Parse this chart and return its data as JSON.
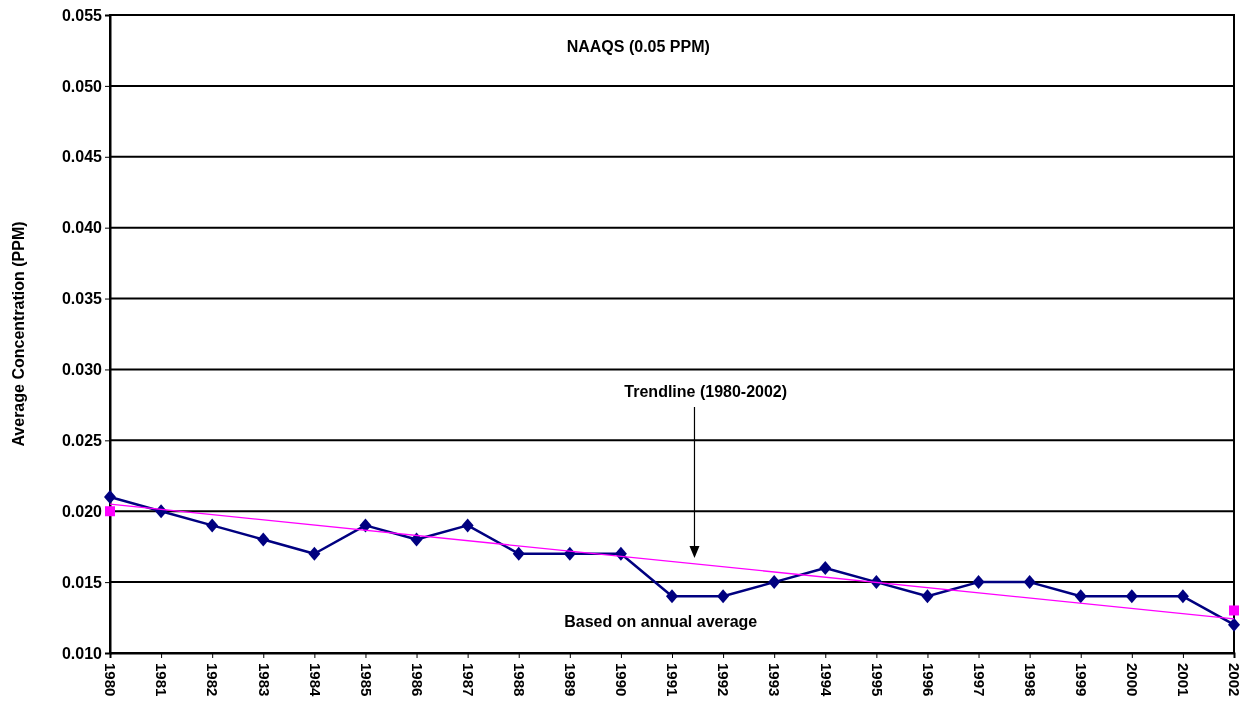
{
  "chart_data": {
    "type": "line",
    "ylabel": "Average Concentration (PPM)",
    "x": [
      1980,
      1981,
      1982,
      1983,
      1984,
      1985,
      1986,
      1987,
      1988,
      1989,
      1990,
      1991,
      1992,
      1993,
      1994,
      1995,
      1996,
      1997,
      1998,
      1999,
      2000,
      2001,
      2002
    ],
    "xlim": [
      1980,
      2002
    ],
    "xticks": [
      1980,
      1981,
      1982,
      1983,
      1984,
      1985,
      1986,
      1987,
      1988,
      1989,
      1990,
      1991,
      1992,
      1993,
      1994,
      1995,
      1996,
      1997,
      1998,
      1999,
      2000,
      2001,
      2002
    ],
    "series": [
      {
        "color": "#000080",
        "marker": "diamond",
        "values": [
          0.021,
          0.02,
          0.019,
          0.018,
          0.017,
          0.019,
          0.018,
          0.019,
          0.017,
          0.017,
          0.017,
          0.014,
          0.014,
          0.015,
          0.016,
          0.015,
          0.014,
          0.015,
          0.015,
          0.014,
          0.014,
          0.014,
          0.012
        ]
      },
      {
        "type": "line",
        "color": "#ff00ff",
        "marker": "none",
        "values": [
          0.0205,
          null,
          null,
          null,
          null,
          null,
          null,
          null,
          null,
          null,
          null,
          null,
          null,
          null,
          null,
          null,
          null,
          null,
          null,
          null,
          null,
          null,
          0.0124
        ]
      },
      {
        "type": "scatter",
        "color": "#ff00ff",
        "marker": "square",
        "values": [
          0.02,
          null,
          null,
          null,
          null,
          null,
          null,
          null,
          null,
          null,
          null,
          null,
          null,
          null,
          null,
          null,
          null,
          null,
          null,
          null,
          null,
          null,
          0.013
        ]
      }
    ],
    "ylim": [
      0.01,
      0.055
    ],
    "yticks": [
      {
        "value": 0.01,
        "label": "0.010"
      },
      {
        "value": 0.015,
        "label": "0.015"
      },
      {
        "value": 0.02,
        "label": "0.020"
      },
      {
        "value": 0.025,
        "label": "0.025"
      },
      {
        "value": 0.03,
        "label": "0.030"
      },
      {
        "value": 0.035,
        "label": "0.035"
      },
      {
        "value": 0.04,
        "label": "0.040"
      },
      {
        "value": 0.045,
        "label": "0.045"
      },
      {
        "value": 0.05,
        "label": "0.050"
      },
      {
        "value": 0.055,
        "label": "0.055"
      }
    ],
    "grid": "y",
    "annotations": [
      "NAAQS (0.05 PPM)",
      "Trendline (1980-2002)",
      "Based on annual average"
    ]
  }
}
